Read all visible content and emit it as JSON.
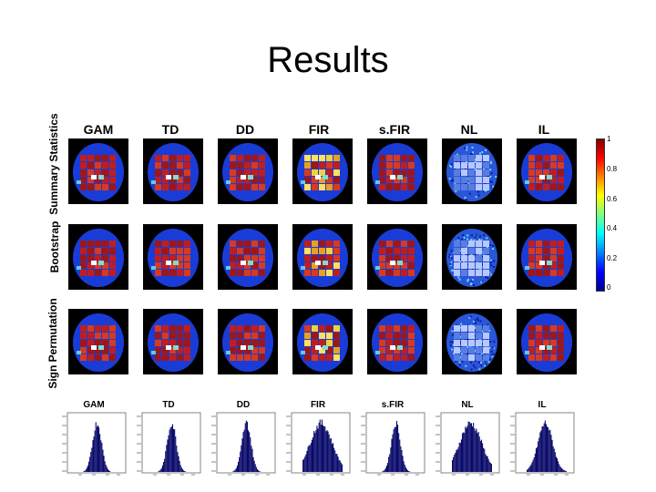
{
  "slide_title": "Results",
  "methods": [
    "GAM",
    "TD",
    "DD",
    "FIR",
    "s.FIR",
    "NL",
    "IL"
  ],
  "rows": [
    "Summary Statistics",
    "Bootstrap",
    "Sign Permutation"
  ],
  "colorbar_ticks": [
    "1",
    "0.8",
    "0.6",
    "0.4",
    "0.2",
    "0"
  ],
  "hist_titles": [
    "GAM",
    "TD",
    "DD",
    "FIR",
    "s.FIR",
    "NL",
    "IL"
  ],
  "colors": {
    "background": "#ffffff",
    "brain": "#1a3cd6",
    "grid_hot": "#b01818",
    "text": "#000000"
  },
  "chart_data": {
    "type": "heatmap",
    "title": "Results",
    "methods": [
      "GAM",
      "TD",
      "DD",
      "FIR",
      "s.FIR",
      "NL",
      "IL"
    ],
    "row_groups": [
      "Summary Statistics",
      "Bootstrap",
      "Sign Permutation"
    ],
    "colorbar": {
      "min": 0,
      "max": 1,
      "ticks": [
        0,
        0.2,
        0.4,
        0.6,
        0.8,
        1
      ]
    },
    "histograms": [
      {
        "name": "GAM",
        "spread": "narrow"
      },
      {
        "name": "TD",
        "spread": "narrow"
      },
      {
        "name": "DD",
        "spread": "narrow"
      },
      {
        "name": "FIR",
        "spread": "wide"
      },
      {
        "name": "s.FIR",
        "spread": "narrow"
      },
      {
        "name": "NL",
        "spread": "wide"
      },
      {
        "name": "IL",
        "spread": "medium"
      }
    ]
  }
}
